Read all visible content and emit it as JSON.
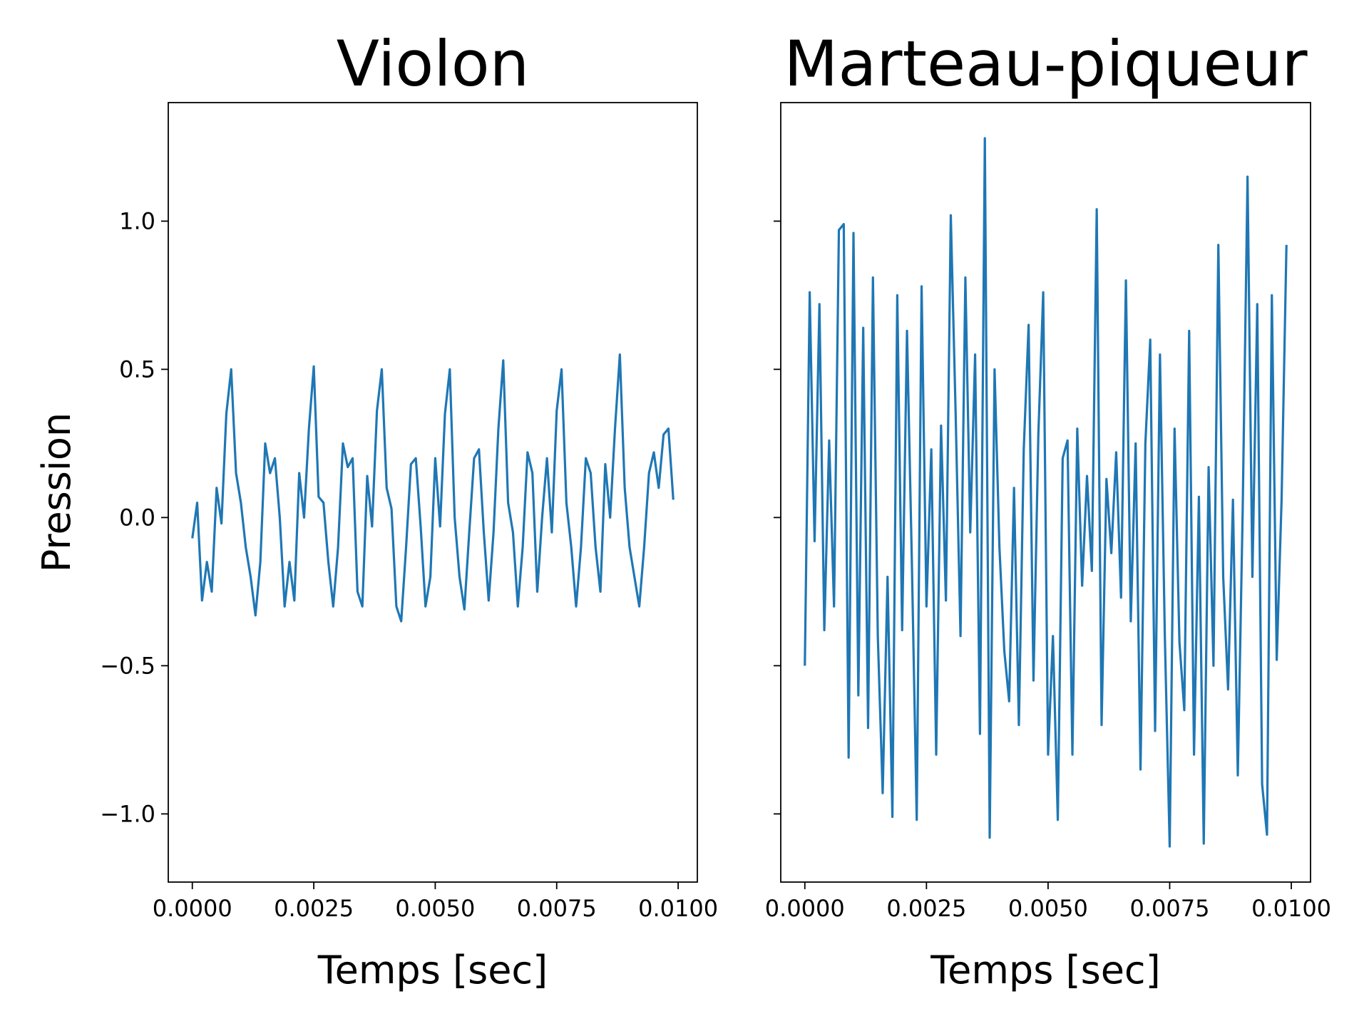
{
  "chart_data": [
    {
      "type": "line",
      "title": "Violon",
      "xlabel": "Temps [sec]",
      "ylabel": "Pression",
      "x": [
        0,
        0.0001,
        0.0002,
        0.0003,
        0.0004,
        0.0005,
        0.0006,
        0.0007,
        0.0008,
        0.0009,
        0.001,
        0.0011,
        0.0012,
        0.0013,
        0.0014,
        0.0015,
        0.0016,
        0.0017,
        0.0018,
        0.0019,
        0.002,
        0.0021,
        0.0022,
        0.0023,
        0.0024,
        0.0025,
        0.0026,
        0.0027,
        0.0028,
        0.0029,
        0.003,
        0.0031,
        0.0032,
        0.0033,
        0.0034,
        0.0035,
        0.0036,
        0.0037,
        0.0038,
        0.0039,
        0.004,
        0.0041,
        0.0042,
        0.0043,
        0.0044,
        0.0045,
        0.0046,
        0.0047,
        0.0048,
        0.0049,
        0.005,
        0.0051,
        0.0052,
        0.0053,
        0.0054,
        0.0055,
        0.0056,
        0.0057,
        0.0058,
        0.0059,
        0.006,
        0.0061,
        0.0062,
        0.0063,
        0.0064,
        0.0065,
        0.0066,
        0.0067,
        0.0068,
        0.0069,
        0.007,
        0.0071,
        0.0072,
        0.0073,
        0.0074,
        0.0075,
        0.0076,
        0.0077,
        0.0078,
        0.0079,
        0.008,
        0.0081,
        0.0082,
        0.0083,
        0.0084,
        0.0085,
        0.0086,
        0.0087,
        0.0088,
        0.0089,
        0.009,
        0.0091,
        0.0092,
        0.0093,
        0.0094,
        0.0095,
        0.0096,
        0.0097,
        0.0098,
        0.0099
      ],
      "series": [
        {
          "color": "#1f77b4",
          "values": [
            -0.07,
            0.05,
            -0.28,
            -0.15,
            -0.25,
            0.1,
            -0.02,
            0.35,
            0.5,
            0.15,
            0.05,
            -0.1,
            -0.2,
            -0.33,
            -0.15,
            0.25,
            0.15,
            0.2,
            0.0,
            -0.3,
            -0.15,
            -0.28,
            0.15,
            0.0,
            0.3,
            0.51,
            0.07,
            0.05,
            -0.15,
            -0.3,
            -0.1,
            0.25,
            0.17,
            0.2,
            -0.25,
            -0.3,
            0.14,
            -0.03,
            0.36,
            0.5,
            0.1,
            0.03,
            -0.3,
            -0.35,
            -0.1,
            0.18,
            0.2,
            -0.03,
            -0.3,
            -0.2,
            0.2,
            -0.03,
            0.35,
            0.5,
            0.0,
            -0.2,
            -0.31,
            -0.05,
            0.2,
            0.23,
            -0.05,
            -0.28,
            -0.05,
            0.3,
            0.53,
            0.05,
            -0.05,
            -0.3,
            -0.1,
            0.22,
            0.15,
            -0.25,
            0.0,
            0.2,
            -0.05,
            0.36,
            0.5,
            0.05,
            -0.1,
            -0.3,
            -0.1,
            0.2,
            0.15,
            -0.1,
            -0.25,
            0.18,
            0.0,
            0.3,
            0.55,
            0.1,
            -0.1,
            -0.2,
            -0.3,
            -0.1,
            0.15,
            0.22,
            0.1,
            0.28,
            0.3,
            0.06
          ]
        }
      ],
      "xlim": [
        -0.000495,
        0.010395
      ],
      "ylim": [
        -1.23,
        1.4
      ],
      "xticks": [
        {
          "value": 0,
          "label": "0.0000"
        },
        {
          "value": 0.0025,
          "label": "0.0025"
        },
        {
          "value": 0.005,
          "label": "0.0050"
        },
        {
          "value": 0.0075,
          "label": "0.0075"
        },
        {
          "value": 0.01,
          "label": "0.0100"
        }
      ],
      "yticks": [
        {
          "value": -1.0,
          "label": "−1.0"
        },
        {
          "value": -0.5,
          "label": "−0.5"
        },
        {
          "value": 0,
          "label": "0.0"
        },
        {
          "value": 0.5,
          "label": "0.5"
        },
        {
          "value": 1.0,
          "label": "1.0"
        }
      ]
    },
    {
      "type": "line",
      "title": "Marteau-piqueur",
      "xlabel": "Temps [sec]",
      "sharey": true,
      "x": [
        0,
        0.0001,
        0.0002,
        0.0003,
        0.0004,
        0.0005,
        0.0006,
        0.0007,
        0.0008,
        0.0009,
        0.001,
        0.0011,
        0.0012,
        0.0013,
        0.0014,
        0.0015,
        0.0016,
        0.0017,
        0.0018,
        0.0019,
        0.002,
        0.0021,
        0.0022,
        0.0023,
        0.0024,
        0.0025,
        0.0026,
        0.0027,
        0.0028,
        0.0029,
        0.003,
        0.0031,
        0.0032,
        0.0033,
        0.0034,
        0.0035,
        0.0036,
        0.0037,
        0.0038,
        0.0039,
        0.004,
        0.0041,
        0.0042,
        0.0043,
        0.0044,
        0.0045,
        0.0046,
        0.0047,
        0.0048,
        0.0049,
        0.005,
        0.0051,
        0.0052,
        0.0053,
        0.0054,
        0.0055,
        0.0056,
        0.0057,
        0.0058,
        0.0059,
        0.006,
        0.0061,
        0.0062,
        0.0063,
        0.0064,
        0.0065,
        0.0066,
        0.0067,
        0.0068,
        0.0069,
        0.007,
        0.0071,
        0.0072,
        0.0073,
        0.0074,
        0.0075,
        0.0076,
        0.0077,
        0.0078,
        0.0079,
        0.008,
        0.0081,
        0.0082,
        0.0083,
        0.0084,
        0.0085,
        0.0086,
        0.0087,
        0.0088,
        0.0089,
        0.009,
        0.0091,
        0.0092,
        0.0093,
        0.0094,
        0.0095,
        0.0096,
        0.0097,
        0.0098,
        0.0099
      ],
      "series": [
        {
          "color": "#1f77b4",
          "values": [
            -0.5,
            0.76,
            -0.08,
            0.72,
            -0.38,
            0.26,
            -0.3,
            0.97,
            0.99,
            -0.81,
            0.96,
            -0.6,
            0.64,
            -0.71,
            0.81,
            -0.4,
            -0.93,
            -0.2,
            -1.01,
            0.75,
            -0.38,
            0.63,
            -0.15,
            -1.02,
            0.78,
            -0.3,
            0.23,
            -0.8,
            0.31,
            -0.28,
            1.02,
            0.35,
            -0.4,
            0.81,
            -0.05,
            0.55,
            -0.73,
            1.28,
            -1.08,
            0.5,
            -0.1,
            -0.45,
            -0.62,
            0.1,
            -0.7,
            0.23,
            0.65,
            -0.55,
            0.28,
            0.76,
            -0.8,
            -0.4,
            -1.02,
            0.2,
            0.26,
            -0.8,
            0.3,
            -0.23,
            0.14,
            -0.18,
            1.04,
            -0.7,
            0.13,
            -0.12,
            0.22,
            -0.27,
            0.8,
            -0.35,
            0.25,
            -0.85,
            0.25,
            0.6,
            -0.72,
            0.55,
            -0.4,
            -1.11,
            0.3,
            -0.42,
            -0.65,
            0.63,
            -0.8,
            0.07,
            -1.1,
            0.17,
            -0.5,
            0.92,
            -0.2,
            -0.58,
            0.06,
            -0.87,
            0.02,
            1.15,
            -0.2,
            0.72,
            -0.9,
            -1.07,
            0.75,
            -0.48,
            0.06,
            0.92
          ]
        }
      ],
      "xlim": [
        -0.000495,
        0.010395
      ],
      "ylim": [
        -1.23,
        1.4
      ],
      "xticks": [
        {
          "value": 0,
          "label": "0.0000"
        },
        {
          "value": 0.0025,
          "label": "0.0025"
        },
        {
          "value": 0.005,
          "label": "0.0050"
        },
        {
          "value": 0.0075,
          "label": "0.0075"
        },
        {
          "value": 0.01,
          "label": "0.0100"
        }
      ],
      "yticks": [
        -1.0,
        -0.5,
        0,
        0.5,
        1.0
      ]
    }
  ]
}
